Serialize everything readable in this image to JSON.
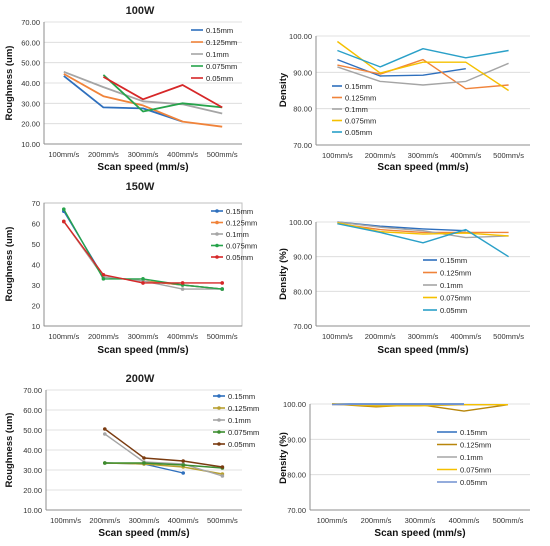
{
  "chart_data": [
    {
      "type": "line",
      "title": "100W",
      "xlabel": "Scan speed (mm/s)",
      "ylabel": "Roughness (um)",
      "categories": [
        "100mm/s",
        "200mm/s",
        "300mm/s",
        "400mm/s",
        "500mm/s"
      ],
      "ylim": [
        10,
        70
      ],
      "yticks": [
        "10.00",
        "20.00",
        "30.00",
        "40.00",
        "50.00",
        "60.00",
        "70.00"
      ],
      "grid": true,
      "legend_position": "top-right",
      "series": [
        {
          "name": "0.15mm",
          "color": "#2e6fbd",
          "values": [
            43.5,
            28,
            27.5,
            21,
            null
          ]
        },
        {
          "name": "0.125mm",
          "color": "#f0833a",
          "values": [
            44.5,
            33.5,
            29,
            21,
            18.5
          ]
        },
        {
          "name": "0.1mm",
          "color": "#a5a5a5",
          "values": [
            45.5,
            38,
            31,
            29.5,
            25
          ]
        },
        {
          "name": "0.075mm",
          "color": "#26a34b",
          "values": [
            null,
            44,
            26,
            30,
            28
          ]
        },
        {
          "name": "0.05mm",
          "color": "#d62728",
          "values": [
            null,
            43,
            32,
            39,
            28
          ]
        }
      ]
    },
    {
      "type": "line",
      "title": "",
      "xlabel": "Scan speed (mm/s)",
      "ylabel": "Density",
      "categories": [
        "100mm/s",
        "200mm/s",
        "300mm/s",
        "400mm/s",
        "500mm/s"
      ],
      "ylim": [
        70,
        100
      ],
      "yticks": [
        "70.00",
        "80.00",
        "90.00",
        "100.00"
      ],
      "grid": true,
      "legend_position": "left",
      "series": [
        {
          "name": "0.15mm",
          "color": "#2e6fbd",
          "values": [
            93.5,
            89,
            89.2,
            91,
            null
          ]
        },
        {
          "name": "0.125mm",
          "color": "#f0833a",
          "values": [
            92,
            89.5,
            93.5,
            85.5,
            86.5
          ]
        },
        {
          "name": "0.1mm",
          "color": "#a5a5a5",
          "values": [
            91.5,
            87.5,
            86.5,
            87.5,
            92.5
          ]
        },
        {
          "name": "0.075mm",
          "color": "#f5c000",
          "values": [
            98.5,
            89.8,
            92.8,
            92.8,
            85
          ]
        },
        {
          "name": "0.05mm",
          "color": "#2aa0c8",
          "values": [
            96,
            91.5,
            96.5,
            94,
            96
          ]
        }
      ]
    },
    {
      "type": "line",
      "title": "150W",
      "xlabel": "Scan speed (mm/s)",
      "ylabel": "Roughness (um)",
      "categories": [
        "100mm/s",
        "200mm/s",
        "300mm/s",
        "400mm/s",
        "500mm/s"
      ],
      "ylim": [
        10,
        70
      ],
      "yticks": [
        "10",
        "20",
        "30",
        "40",
        "50",
        "60",
        "70"
      ],
      "grid": false,
      "legend_position": "top-right",
      "series": [
        {
          "name": "0.15mm",
          "color": "#2e6fbd",
          "values": [
            66,
            34,
            32,
            30,
            28
          ]
        },
        {
          "name": "0.125mm",
          "color": "#f0833a",
          "values": [
            61,
            34,
            32,
            30,
            28
          ]
        },
        {
          "name": "0.1mm",
          "color": "#a5a5a5",
          "values": [
            61,
            34,
            32,
            28,
            28
          ]
        },
        {
          "name": "0.075mm",
          "color": "#26a34b",
          "values": [
            67,
            33,
            33,
            30,
            28
          ]
        },
        {
          "name": "0.05mm",
          "color": "#d62728",
          "values": [
            61,
            35,
            31,
            31,
            31
          ]
        }
      ]
    },
    {
      "type": "line",
      "title": "",
      "xlabel": "Scan speed (mm/s)",
      "ylabel": "Density (%)",
      "categories": [
        "100mm/s",
        "200mm/s",
        "300mm/s",
        "400mm/s",
        "500mm/s"
      ],
      "ylim": [
        70,
        100
      ],
      "yticks": [
        "70.00",
        "80.00",
        "90.00",
        "100.00"
      ],
      "grid": true,
      "legend_position": "bottom-right",
      "series": [
        {
          "name": "0.15mm",
          "color": "#2e6fbd",
          "values": [
            100,
            98.8,
            98,
            97.5,
            null
          ]
        },
        {
          "name": "0.125mm",
          "color": "#f0833a",
          "values": [
            99.5,
            97.8,
            97,
            97,
            97
          ]
        },
        {
          "name": "0.1mm",
          "color": "#a5a5a5",
          "values": [
            100,
            98.5,
            97.5,
            95.5,
            96
          ]
        },
        {
          "name": "0.075mm",
          "color": "#f5c000",
          "values": [
            99.8,
            97.2,
            96.5,
            96.8,
            96
          ]
        },
        {
          "name": "0.05mm",
          "color": "#2aa0c8",
          "values": [
            99.5,
            97,
            94,
            97.8,
            90
          ]
        }
      ]
    },
    {
      "type": "line",
      "title": "200W",
      "xlabel": "Scan speed (mm/s)",
      "ylabel": "Roughness (um)",
      "categories": [
        "100mm/s",
        "200mm/s",
        "300mm/s",
        "400mm/s",
        "500mm/s"
      ],
      "ylim": [
        10,
        70
      ],
      "yticks": [
        "10.00",
        "20.00",
        "30.00",
        "40.00",
        "50.00",
        "60.00",
        "70.00"
      ],
      "grid": true,
      "legend_position": "top-right",
      "series": [
        {
          "name": "0.15mm",
          "color": "#2e6fbd",
          "values": [
            null,
            33.5,
            33,
            28.5,
            null
          ]
        },
        {
          "name": "0.125mm",
          "color": "#b8a030",
          "values": [
            null,
            33.5,
            33,
            31.5,
            28
          ]
        },
        {
          "name": "0.1mm",
          "color": "#a5a5a5",
          "values": [
            null,
            48,
            34,
            33,
            27
          ]
        },
        {
          "name": "0.075mm",
          "color": "#3c8d2f",
          "values": [
            null,
            33.5,
            33.5,
            32.5,
            31
          ]
        },
        {
          "name": "0.05mm",
          "color": "#7a3b10",
          "values": [
            null,
            50.5,
            36,
            34.5,
            31.5
          ]
        }
      ]
    },
    {
      "type": "line",
      "title": "",
      "xlabel": "Scan speed (mm/s)",
      "ylabel": "Density (%)",
      "categories": [
        "100mm/s",
        "200mm/s",
        "300mm/s",
        "400mm/s",
        "500mm/s"
      ],
      "ylim": [
        70,
        100
      ],
      "yticks": [
        "70.00",
        "80.00",
        "90.00",
        "100.00"
      ],
      "grid": true,
      "legend_position": "right",
      "series": [
        {
          "name": "0.15mm",
          "color": "#2e6fbd",
          "values": [
            100,
            100,
            100,
            100,
            null
          ]
        },
        {
          "name": "0.125mm",
          "color": "#b8860b",
          "values": [
            100,
            99.2,
            99.8,
            98,
            99.8
          ]
        },
        {
          "name": "0.1mm",
          "color": "#a5a5a5",
          "values": [
            99.8,
            99.8,
            99.8,
            99.8,
            99.8
          ]
        },
        {
          "name": "0.075mm",
          "color": "#f5c000",
          "values": [
            100,
            99.5,
            99.5,
            99.8,
            99.8
          ]
        },
        {
          "name": "0.05mm",
          "color": "#7090d0",
          "values": [
            99.9,
            99.9,
            99.9,
            99.9,
            null
          ]
        }
      ]
    }
  ]
}
